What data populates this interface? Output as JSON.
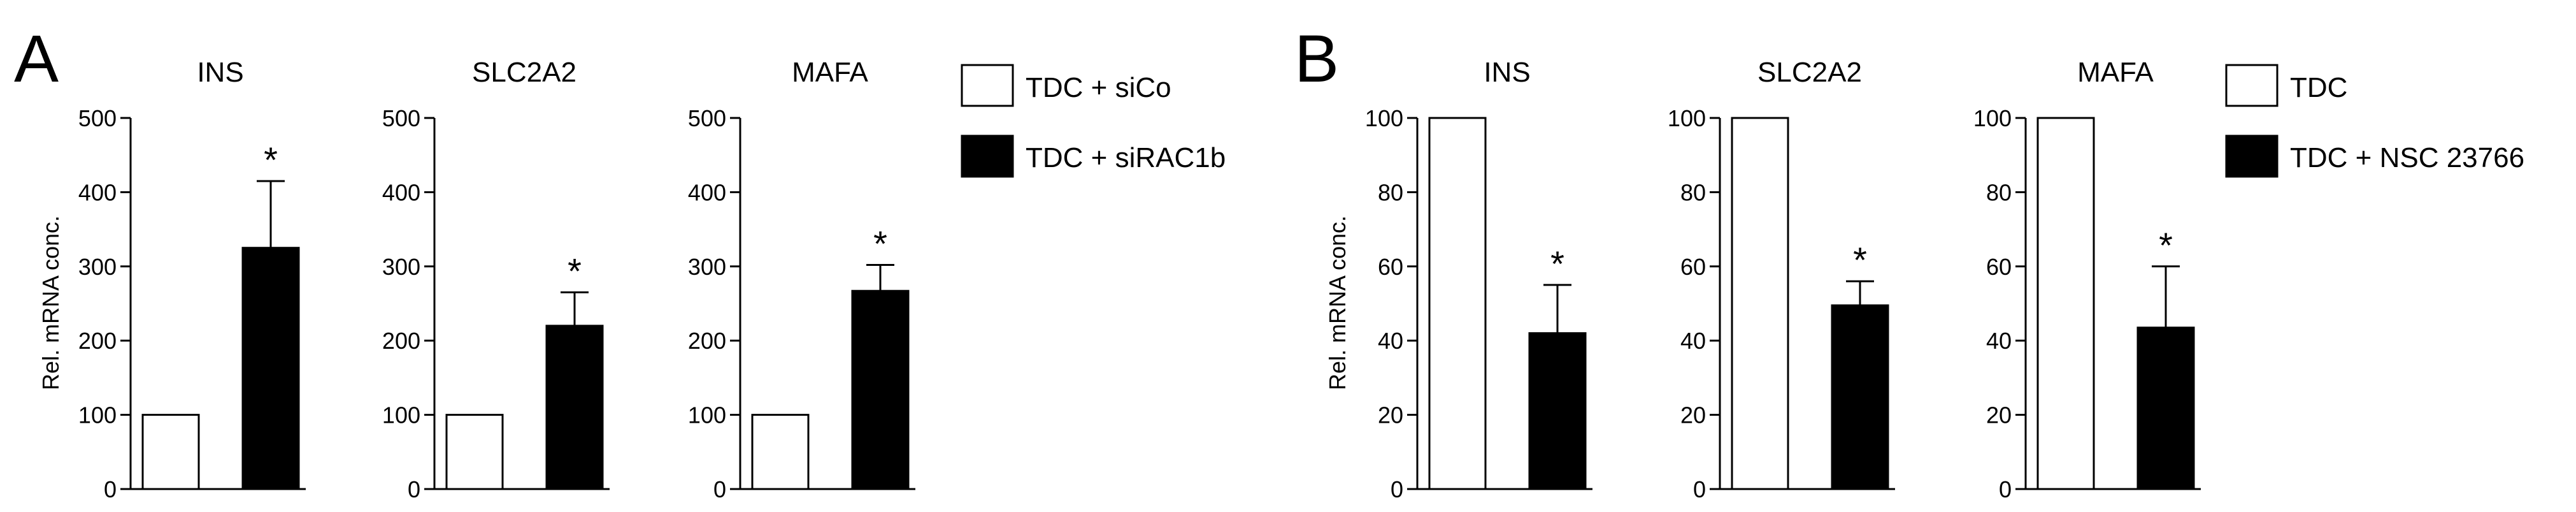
{
  "panels": [
    {
      "letter": "A",
      "ylabel": "Rel. mRNA conc.",
      "legend": [
        {
          "label": "TDC + siCo",
          "fill": "#ffffff"
        },
        {
          "label": "TDC + siRAC1b",
          "fill": "#000000"
        }
      ],
      "subplots": [
        "INS",
        "SLC2A2",
        "MAFA"
      ]
    },
    {
      "letter": "B",
      "ylabel": "Rel. mRNA conc.",
      "legend": [
        {
          "label": "TDC",
          "fill": "#ffffff"
        },
        {
          "label": "TDC + NSC 23766",
          "fill": "#000000"
        }
      ],
      "subplots": [
        "INS",
        "SLC2A2",
        "MAFA"
      ]
    }
  ],
  "colors": {
    "control_fill": "#ffffff",
    "treatment_fill": "#000000",
    "stroke": "#000000"
  },
  "chart_data": [
    {
      "panel": "A",
      "type": "bar",
      "title": "INS",
      "ylim": [
        0,
        500
      ],
      "yticks": [
        0,
        100,
        200,
        300,
        400,
        500
      ],
      "series": [
        {
          "name": "TDC + siCo",
          "values": [
            100
          ],
          "error": [
            0
          ]
        },
        {
          "name": "TDC + siRAC1b",
          "values": [
            325
          ],
          "error": [
            90
          ],
          "annotation": "*"
        }
      ]
    },
    {
      "panel": "A",
      "type": "bar",
      "title": "SLC2A2",
      "ylim": [
        0,
        500
      ],
      "yticks": [
        0,
        100,
        200,
        300,
        400,
        500
      ],
      "series": [
        {
          "name": "TDC + siCo",
          "values": [
            100
          ],
          "error": [
            0
          ]
        },
        {
          "name": "TDC + siRAC1b",
          "values": [
            220
          ],
          "error": [
            45
          ],
          "annotation": "*"
        }
      ]
    },
    {
      "panel": "A",
      "type": "bar",
      "title": "MAFA",
      "ylim": [
        0,
        500
      ],
      "yticks": [
        0,
        100,
        200,
        300,
        400,
        500
      ],
      "series": [
        {
          "name": "TDC + siCo",
          "values": [
            100
          ],
          "error": [
            0
          ]
        },
        {
          "name": "TDC + siRAC1b",
          "values": [
            267
          ],
          "error": [
            35
          ],
          "annotation": "*"
        }
      ]
    },
    {
      "panel": "B",
      "type": "bar",
      "title": "INS",
      "ylim": [
        0,
        100
      ],
      "yticks": [
        0,
        20,
        40,
        60,
        80,
        100
      ],
      "series": [
        {
          "name": "TDC",
          "values": [
            100
          ],
          "error": [
            0
          ]
        },
        {
          "name": "TDC + NSC 23766",
          "values": [
            42
          ],
          "error": [
            13
          ],
          "annotation": "*"
        }
      ]
    },
    {
      "panel": "B",
      "type": "bar",
      "title": "SLC2A2",
      "ylim": [
        0,
        100
      ],
      "yticks": [
        0,
        20,
        40,
        60,
        80,
        100
      ],
      "series": [
        {
          "name": "TDC",
          "values": [
            100
          ],
          "error": [
            0
          ]
        },
        {
          "name": "TDC + NSC 23766",
          "values": [
            49.5
          ],
          "error": [
            6.5
          ],
          "annotation": "*"
        }
      ]
    },
    {
      "panel": "B",
      "type": "bar",
      "title": "MAFA",
      "ylim": [
        0,
        100
      ],
      "yticks": [
        0,
        20,
        40,
        60,
        80,
        100
      ],
      "series": [
        {
          "name": "TDC",
          "values": [
            100
          ],
          "error": [
            0
          ]
        },
        {
          "name": "TDC + NSC 23766",
          "values": [
            43.5
          ],
          "error": [
            16.5
          ],
          "annotation": "*"
        }
      ]
    }
  ]
}
